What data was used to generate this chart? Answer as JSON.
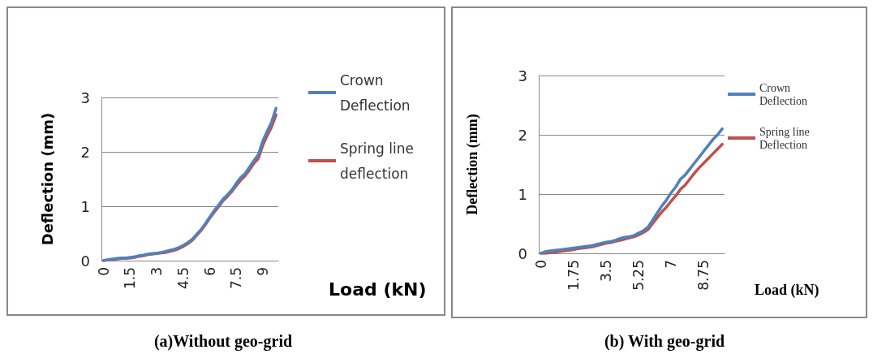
{
  "chart_data": [
    {
      "type": "line",
      "title": "(a)Without geo-grid",
      "xlabel": "Load (kN)",
      "ylabel": "Deflection (mm)",
      "categories": [
        "0",
        null,
        null,
        null,
        null,
        null,
        "1.5",
        null,
        null,
        null,
        null,
        null,
        "3",
        null,
        null,
        null,
        null,
        null,
        "4.5",
        null,
        null,
        null,
        null,
        null,
        "6",
        null,
        null,
        null,
        null,
        null,
        "7.5",
        null,
        null,
        null,
        null,
        null,
        "9",
        null,
        null,
        null
      ],
      "series": [
        {
          "name": "Crown Deflection",
          "color": "#4f81bd",
          "values": [
            0,
            0.02,
            0.03,
            0.04,
            0.05,
            0.05,
            0.06,
            0.07,
            0.09,
            0.1,
            0.12,
            0.13,
            0.14,
            0.15,
            0.17,
            0.19,
            0.21,
            0.24,
            0.28,
            0.33,
            0.39,
            0.48,
            0.57,
            0.68,
            0.8,
            0.92,
            1.02,
            1.13,
            1.21,
            1.3,
            1.42,
            1.53,
            1.6,
            1.72,
            1.84,
            1.95,
            2.2,
            2.38,
            2.55,
            2.8
          ]
        },
        {
          "name": "Spring line deflection",
          "color": "#c0504d",
          "values": [
            0,
            0.01,
            0.02,
            0.03,
            0.04,
            0.04,
            0.05,
            0.06,
            0.08,
            0.09,
            0.11,
            0.12,
            0.13,
            0.14,
            0.15,
            0.17,
            0.19,
            0.22,
            0.26,
            0.31,
            0.37,
            0.46,
            0.55,
            0.66,
            0.78,
            0.89,
            0.99,
            1.1,
            1.18,
            1.27,
            1.38,
            1.48,
            1.56,
            1.67,
            1.79,
            1.88,
            2.12,
            2.3,
            2.46,
            2.68
          ]
        }
      ],
      "ylim": [
        0,
        3
      ],
      "yticks": [
        0,
        1,
        2,
        3
      ],
      "grid": "y",
      "legend": "right",
      "marker": "none",
      "line_style": "solid"
    },
    {
      "type": "line",
      "title": "(b) With geo-grid",
      "xlabel": "Load (kN)",
      "ylabel": "Deflection (mm)",
      "categories": [
        "0",
        null,
        null,
        null,
        null,
        null,
        null,
        "1.75",
        null,
        null,
        null,
        null,
        null,
        null,
        "3.5",
        null,
        null,
        null,
        null,
        null,
        null,
        "5.25",
        null,
        null,
        null,
        null,
        null,
        null,
        "7",
        null,
        null,
        null,
        null,
        null,
        null,
        "8.75",
        null,
        null,
        null,
        null
      ],
      "series": [
        {
          "name": "Crown Deflection",
          "color": "#4f81bd",
          "values": [
            0,
            0.03,
            0.04,
            0.05,
            0.06,
            0.07,
            0.08,
            0.09,
            0.1,
            0.11,
            0.12,
            0.13,
            0.15,
            0.17,
            0.19,
            0.2,
            0.22,
            0.25,
            0.27,
            0.28,
            0.3,
            0.34,
            0.38,
            0.44,
            0.56,
            0.68,
            0.8,
            0.9,
            1.02,
            1.12,
            1.25,
            1.32,
            1.42,
            1.52,
            1.62,
            1.72,
            1.82,
            1.92,
            2.0,
            2.1
          ]
        },
        {
          "name": "Spring line Deflection",
          "color": "#c0504d",
          "values": [
            0,
            0,
            0.01,
            0.02,
            0.03,
            0.04,
            0.05,
            0.06,
            0.08,
            0.09,
            0.1,
            0.11,
            0.13,
            0.15,
            0.17,
            0.18,
            0.2,
            0.22,
            0.24,
            0.26,
            0.28,
            0.31,
            0.35,
            0.4,
            0.5,
            0.6,
            0.7,
            0.78,
            0.88,
            0.97,
            1.08,
            1.15,
            1.25,
            1.35,
            1.44,
            1.52,
            1.6,
            1.68,
            1.76,
            1.84
          ]
        }
      ],
      "ylim": [
        0,
        3
      ],
      "yticks": [
        0,
        1,
        2,
        3
      ],
      "grid": "y",
      "legend": "right",
      "marker": "none",
      "line_style": "solid"
    }
  ]
}
